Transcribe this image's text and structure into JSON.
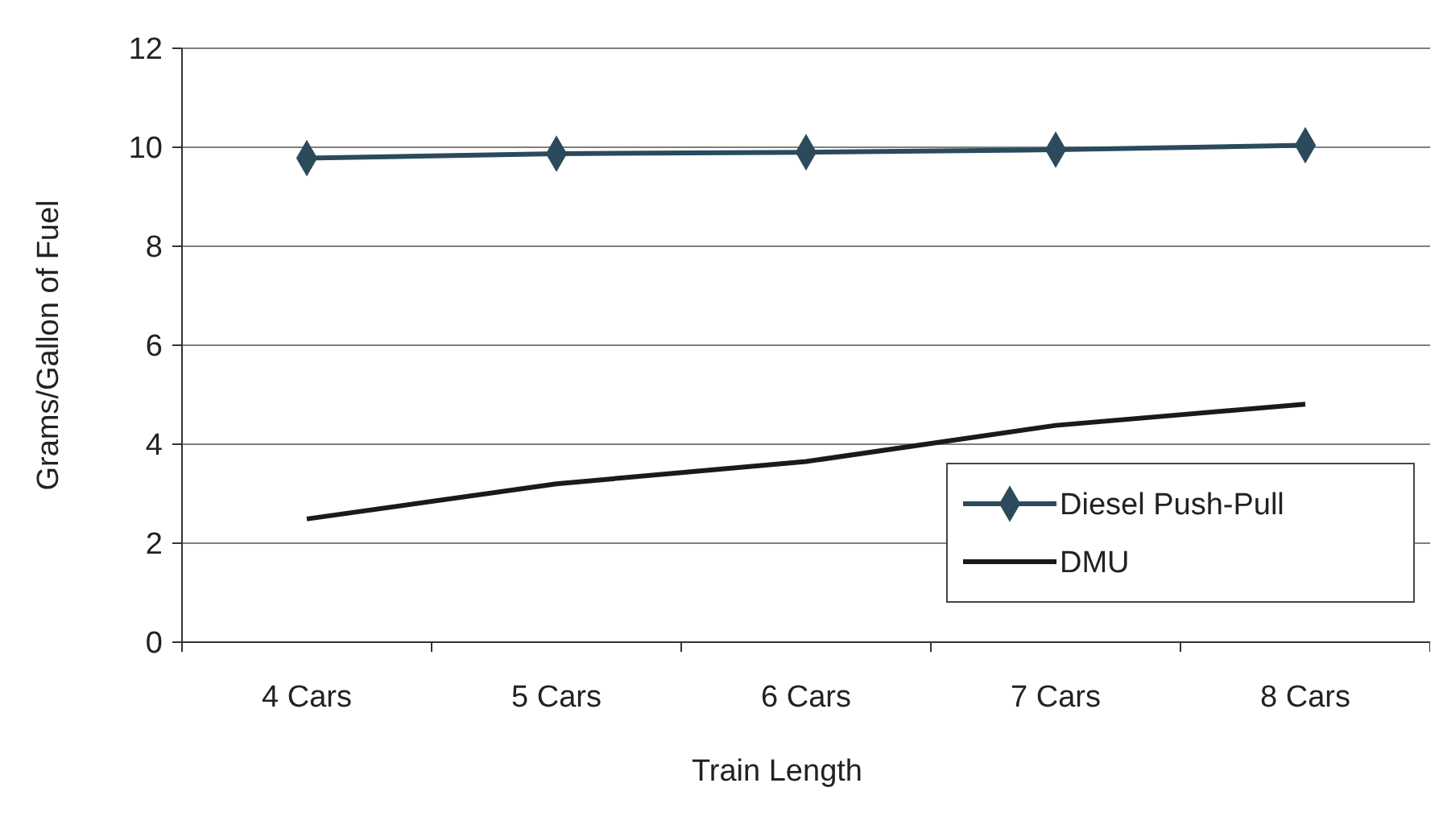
{
  "chart_data": {
    "type": "line",
    "xlabel": "Train Length",
    "ylabel": "Grams/Gallon of Fuel",
    "categories": [
      "4 Cars",
      "5 Cars",
      "6 Cars",
      "7 Cars",
      "8 Cars"
    ],
    "series": [
      {
        "name": "Diesel Push-Pull",
        "color": "#2b4a5c",
        "marker": "diamond",
        "values": [
          9.78,
          9.87,
          9.9,
          9.95,
          10.04
        ]
      },
      {
        "name": "DMU",
        "color": "#1a1a1a",
        "marker": "none",
        "values": [
          2.49,
          3.2,
          3.65,
          4.38,
          4.81
        ]
      }
    ],
    "ylim": [
      0,
      12
    ],
    "yticks": [
      0,
      2,
      4,
      6,
      8,
      10,
      12
    ],
    "grid": "y",
    "legend": "bottom right",
    "line_style": "solid"
  }
}
